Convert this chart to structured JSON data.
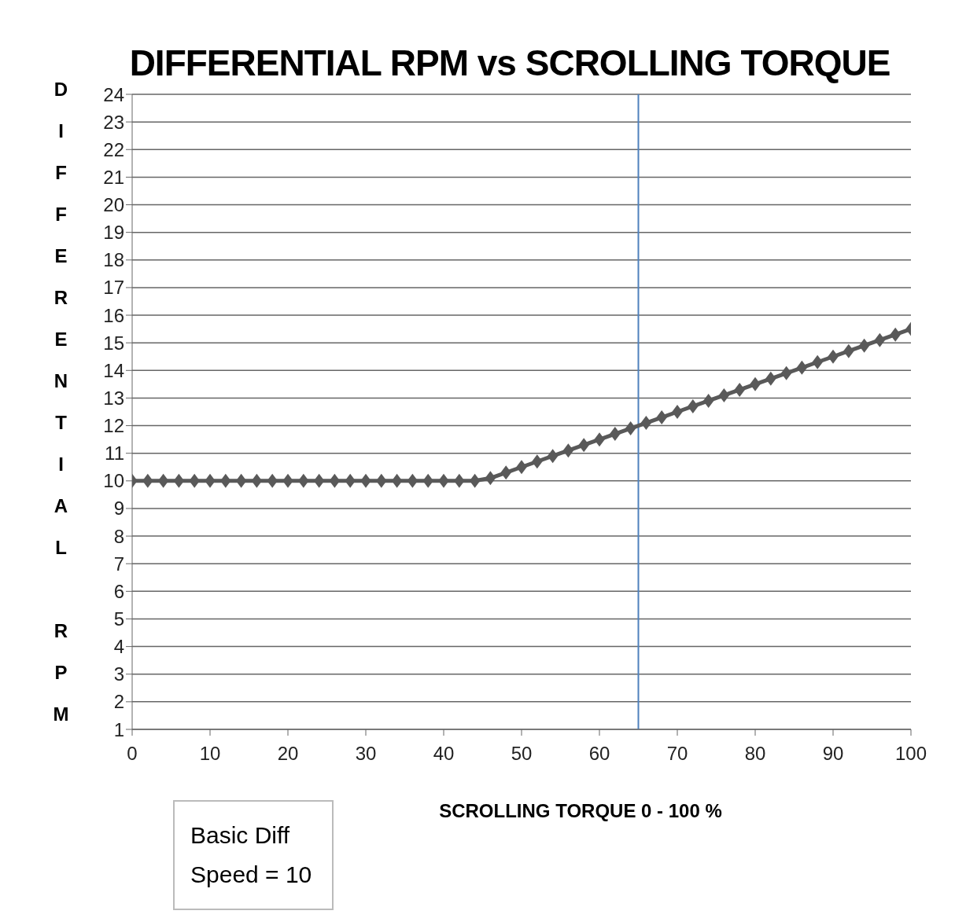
{
  "chart_data": {
    "type": "line",
    "title": "DIFFERENTIAL RPM vs SCROLLING TORQUE",
    "xlabel": "SCROLLING TORQUE  0 - 100 %",
    "ylabel": "DIFFERENTIAL RPM",
    "x": [
      0,
      2,
      4,
      6,
      8,
      10,
      12,
      14,
      16,
      18,
      20,
      22,
      24,
      26,
      28,
      30,
      32,
      34,
      36,
      38,
      40,
      42,
      44,
      46,
      48,
      50,
      52,
      54,
      56,
      58,
      60,
      62,
      64,
      66,
      68,
      70,
      72,
      74,
      76,
      78,
      80,
      82,
      84,
      86,
      88,
      90,
      92,
      94,
      96,
      98,
      100
    ],
    "series": [
      {
        "color": "#595959",
        "values": [
          10,
          10,
          10,
          10,
          10,
          10,
          10,
          10,
          10,
          10,
          10,
          10,
          10,
          10,
          10,
          10,
          10,
          10,
          10,
          10,
          10,
          10,
          10,
          10.1,
          10.3,
          10.5,
          10.7,
          10.9,
          11.1,
          11.3,
          11.5,
          11.7,
          11.9,
          12.1,
          12.3,
          12.5,
          12.7,
          12.9,
          13.1,
          13.3,
          13.5,
          13.7,
          13.9,
          14.1,
          14.3,
          14.5,
          14.7,
          14.9,
          15.1,
          15.3,
          15.5
        ]
      }
    ],
    "xlim": [
      0,
      100
    ],
    "xticks": [
      0,
      10,
      20,
      30,
      40,
      50,
      60,
      70,
      80,
      90,
      100
    ],
    "ylim": [
      1,
      24
    ],
    "yticks": [
      1,
      2,
      3,
      4,
      5,
      6,
      7,
      8,
      9,
      10,
      11,
      12,
      13,
      14,
      15,
      16,
      17,
      18,
      19,
      20,
      21,
      22,
      23,
      24
    ],
    "ref_lines": [
      {
        "axis": "x",
        "value": 65,
        "color": "#4f81bd"
      }
    ],
    "annotations": [
      "Basic Diff Speed = 10"
    ],
    "grid": "y",
    "marker": "diamond",
    "line_style": "solid"
  }
}
